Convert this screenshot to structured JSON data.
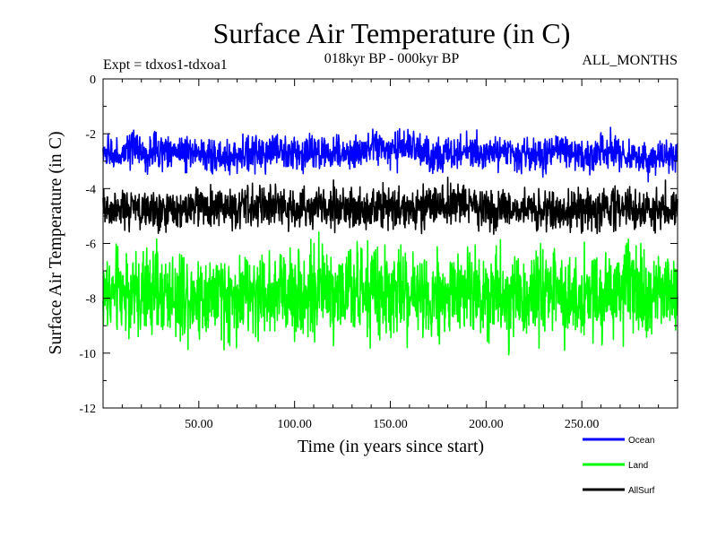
{
  "chart_data": {
    "type": "line",
    "title": "Surface Air Temperature (in C)",
    "subtitle": "018kyr BP - 000kyr BP",
    "experiment_label": "Expt = tdxos1-tdxoa1",
    "months_label": "ALL_MONTHS",
    "xlabel": "Time (in years since start)",
    "ylabel": "Surface Air Temperature (in C)",
    "xlim": [
      0,
      300
    ],
    "ylim": [
      -12,
      0
    ],
    "x_ticks": [
      50,
      100,
      150,
      200,
      250
    ],
    "x_tick_labels": [
      "50.00",
      "100.00",
      "150.00",
      "200.00",
      "250.00"
    ],
    "y_ticks": [
      0,
      -2,
      -4,
      -6,
      -8,
      -10,
      -12
    ],
    "y_tick_labels": [
      "0",
      "-2",
      "-4",
      "-6",
      "-8",
      "-10",
      "-12"
    ],
    "grid": false,
    "legend_position": "bottom-right",
    "series": [
      {
        "name": "Ocean",
        "color": "#0000ff",
        "mean": -2.7,
        "spread": 0.5,
        "min": -4.0,
        "max": -1.6
      },
      {
        "name": "Land",
        "color": "#00ff00",
        "mean": -7.8,
        "spread": 1.3,
        "min": -10.5,
        "max": -5.3
      },
      {
        "name": "AllSurf",
        "color": "#000000",
        "mean": -4.7,
        "spread": 0.6,
        "min": -6.0,
        "max": -3.3
      }
    ]
  }
}
